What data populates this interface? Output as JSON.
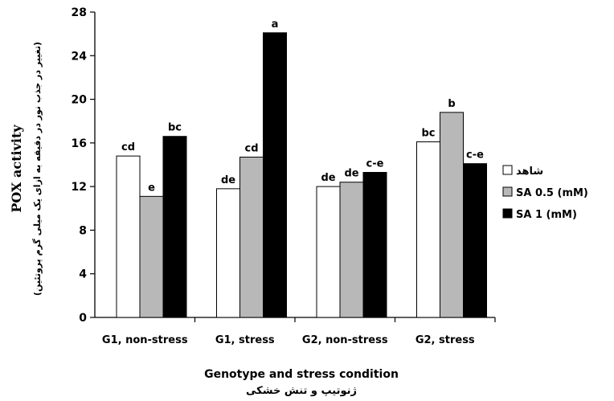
{
  "colors": {
    "series": [
      "#ffffff",
      "#b8b8b8",
      "#000000"
    ],
    "stroke": "#000000"
  },
  "chart_data": {
    "type": "bar",
    "categories": [
      "G1, non-stress",
      "G1, stress",
      "G2, non-stress",
      "G2, stress"
    ],
    "series": [
      {
        "name": "شاهد",
        "values": [
          14.8,
          11.8,
          12.0,
          16.1
        ],
        "labels": [
          "cd",
          "de",
          "de",
          "bc"
        ]
      },
      {
        "name": "SA 0.5 (mM)",
        "values": [
          11.1,
          14.7,
          12.4,
          18.8
        ],
        "labels": [
          "e",
          "cd",
          "de",
          "b"
        ]
      },
      {
        "name": "SA 1 (mM)",
        "values": [
          16.6,
          26.1,
          13.3,
          14.1
        ],
        "labels": [
          "bc",
          "a",
          "c-e",
          "c-e"
        ]
      }
    ],
    "ylabel": "POX activity",
    "ylabel_sub": "(تغییر در جذب نور در دقیقه به ازای یک میلی گرم پروتئین)",
    "xlabel": "Genotype and stress condition",
    "xlabel_sub": "ژنوتیپ و تنش خشکی",
    "ylim": [
      0,
      28
    ],
    "yticks": [
      0,
      4,
      8,
      12,
      16,
      20,
      24,
      28
    ],
    "grid": false,
    "legend": "right"
  }
}
